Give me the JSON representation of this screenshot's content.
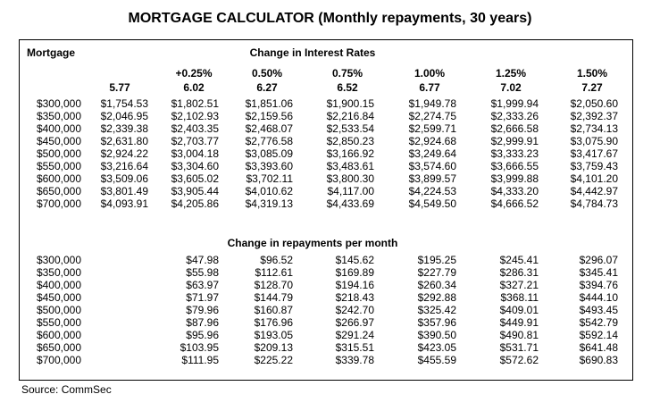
{
  "title": "MORTGAGE CALCULATOR (Monthly repayments, 30 years)",
  "mortgage_header": "Mortgage",
  "section1_heading": "Change in Interest Rates",
  "section2_heading": "Change in repayments per month",
  "rate_changes": [
    "",
    "+0.25%",
    "0.50%",
    "0.75%",
    "1.00%",
    "1.25%",
    "1.50%"
  ],
  "rates": [
    "5.77",
    "6.02",
    "6.27",
    "6.52",
    "6.77",
    "7.02",
    "7.27"
  ],
  "mortgages": [
    "$300,000",
    "$350,000",
    "$400,000",
    "$450,000",
    "$500,000",
    "$550,000",
    "$600,000",
    "$650,000",
    "$700,000"
  ],
  "repayments": [
    [
      "$1,754.53",
      "$1,802.51",
      "$1,851.06",
      "$1,900.15",
      "$1,949.78",
      "$1,999.94",
      "$2,050.60"
    ],
    [
      "$2,046.95",
      "$2,102.93",
      "$2,159.56",
      "$2,216.84",
      "$2,274.75",
      "$2,333.26",
      "$2,392.37"
    ],
    [
      "$2,339.38",
      "$2,403.35",
      "$2,468.07",
      "$2,533.54",
      "$2,599.71",
      "$2,666.58",
      "$2,734.13"
    ],
    [
      "$2,631.80",
      "$2,703.77",
      "$2,776.58",
      "$2,850.23",
      "$2,924.68",
      "$2,999.91",
      "$3,075.90"
    ],
    [
      "$2,924.22",
      "$3,004.18",
      "$3,085.09",
      "$3,166.92",
      "$3,249.64",
      "$3,333.23",
      "$3,417.67"
    ],
    [
      "$3,216.64",
      "$3,304.60",
      "$3,393.60",
      "$3,483.61",
      "$3,574.60",
      "$3,666.55",
      "$3,759.43"
    ],
    [
      "$3,509.06",
      "$3,605.02",
      "$3,702.11",
      "$3,800.30",
      "$3,899.57",
      "$3,999.88",
      "$4,101.20"
    ],
    [
      "$3,801.49",
      "$3,905.44",
      "$4,010.62",
      "$4,117.00",
      "$4,224.53",
      "$4,333.20",
      "$4,442.97"
    ],
    [
      "$4,093.91",
      "$4,205.86",
      "$4,319.13",
      "$4,433.69",
      "$4,549.50",
      "$4,666.52",
      "$4,784.73"
    ]
  ],
  "changes": [
    [
      "$47.98",
      "$96.52",
      "$145.62",
      "$195.25",
      "$245.41",
      "$296.07"
    ],
    [
      "$55.98",
      "$112.61",
      "$169.89",
      "$227.79",
      "$286.31",
      "$345.41"
    ],
    [
      "$63.97",
      "$128.70",
      "$194.16",
      "$260.34",
      "$327.21",
      "$394.76"
    ],
    [
      "$71.97",
      "$144.79",
      "$218.43",
      "$292.88",
      "$368.11",
      "$444.10"
    ],
    [
      "$79.96",
      "$160.87",
      "$242.70",
      "$325.42",
      "$409.01",
      "$493.45"
    ],
    [
      "$87.96",
      "$176.96",
      "$266.97",
      "$357.96",
      "$449.91",
      "$542.79"
    ],
    [
      "$95.96",
      "$193.05",
      "$291.24",
      "$390.50",
      "$490.81",
      "$592.14"
    ],
    [
      "$103.95",
      "$209.13",
      "$315.51",
      "$423.05",
      "$531.71",
      "$641.48"
    ],
    [
      "$111.95",
      "$225.22",
      "$339.78",
      "$455.59",
      "$572.62",
      "$690.83"
    ]
  ],
  "source": "Source: CommSec"
}
